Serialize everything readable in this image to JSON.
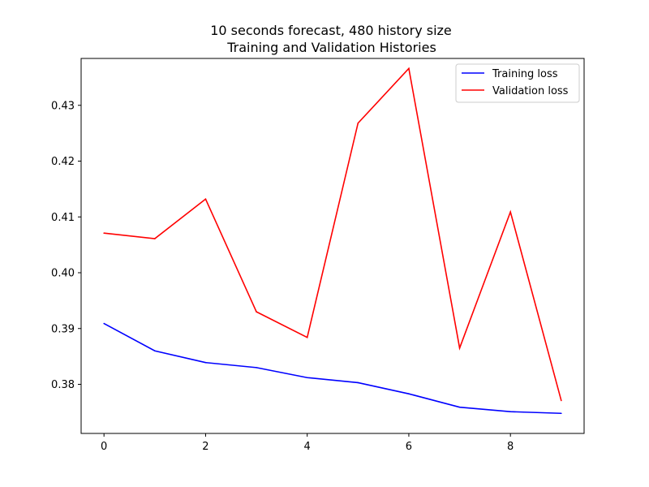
{
  "chart_data": {
    "type": "line",
    "title": "10 seconds forecast, 480 history size",
    "subtitle": "Training and Validation Histories",
    "xlabel": "",
    "ylabel": "",
    "xlim": [
      -0.45,
      9.45
    ],
    "ylim": [
      0.3712,
      0.4384
    ],
    "grid": false,
    "legend_position": "top-right",
    "x": [
      0,
      1,
      2,
      3,
      4,
      5,
      6,
      7,
      8,
      9
    ],
    "x_ticks": [
      0,
      2,
      4,
      6,
      8
    ],
    "y_ticks": [
      0.38,
      0.39,
      0.4,
      0.41,
      0.42,
      0.43
    ],
    "x_tick_labels": [
      "0",
      "2",
      "4",
      "6",
      "8"
    ],
    "y_tick_labels": [
      "0.38",
      "0.39",
      "0.40",
      "0.41",
      "0.42",
      "0.43"
    ],
    "series": [
      {
        "name": "Training loss",
        "color": "#0000ff",
        "values": [
          0.3909,
          0.386,
          0.3839,
          0.383,
          0.3812,
          0.3803,
          0.3783,
          0.3759,
          0.3751,
          0.3748
        ]
      },
      {
        "name": "Validation loss",
        "color": "#ff0000",
        "values": [
          0.4071,
          0.4061,
          0.4132,
          0.393,
          0.3884,
          0.4268,
          0.4366,
          0.3865,
          0.4109,
          0.3771
        ]
      }
    ]
  }
}
